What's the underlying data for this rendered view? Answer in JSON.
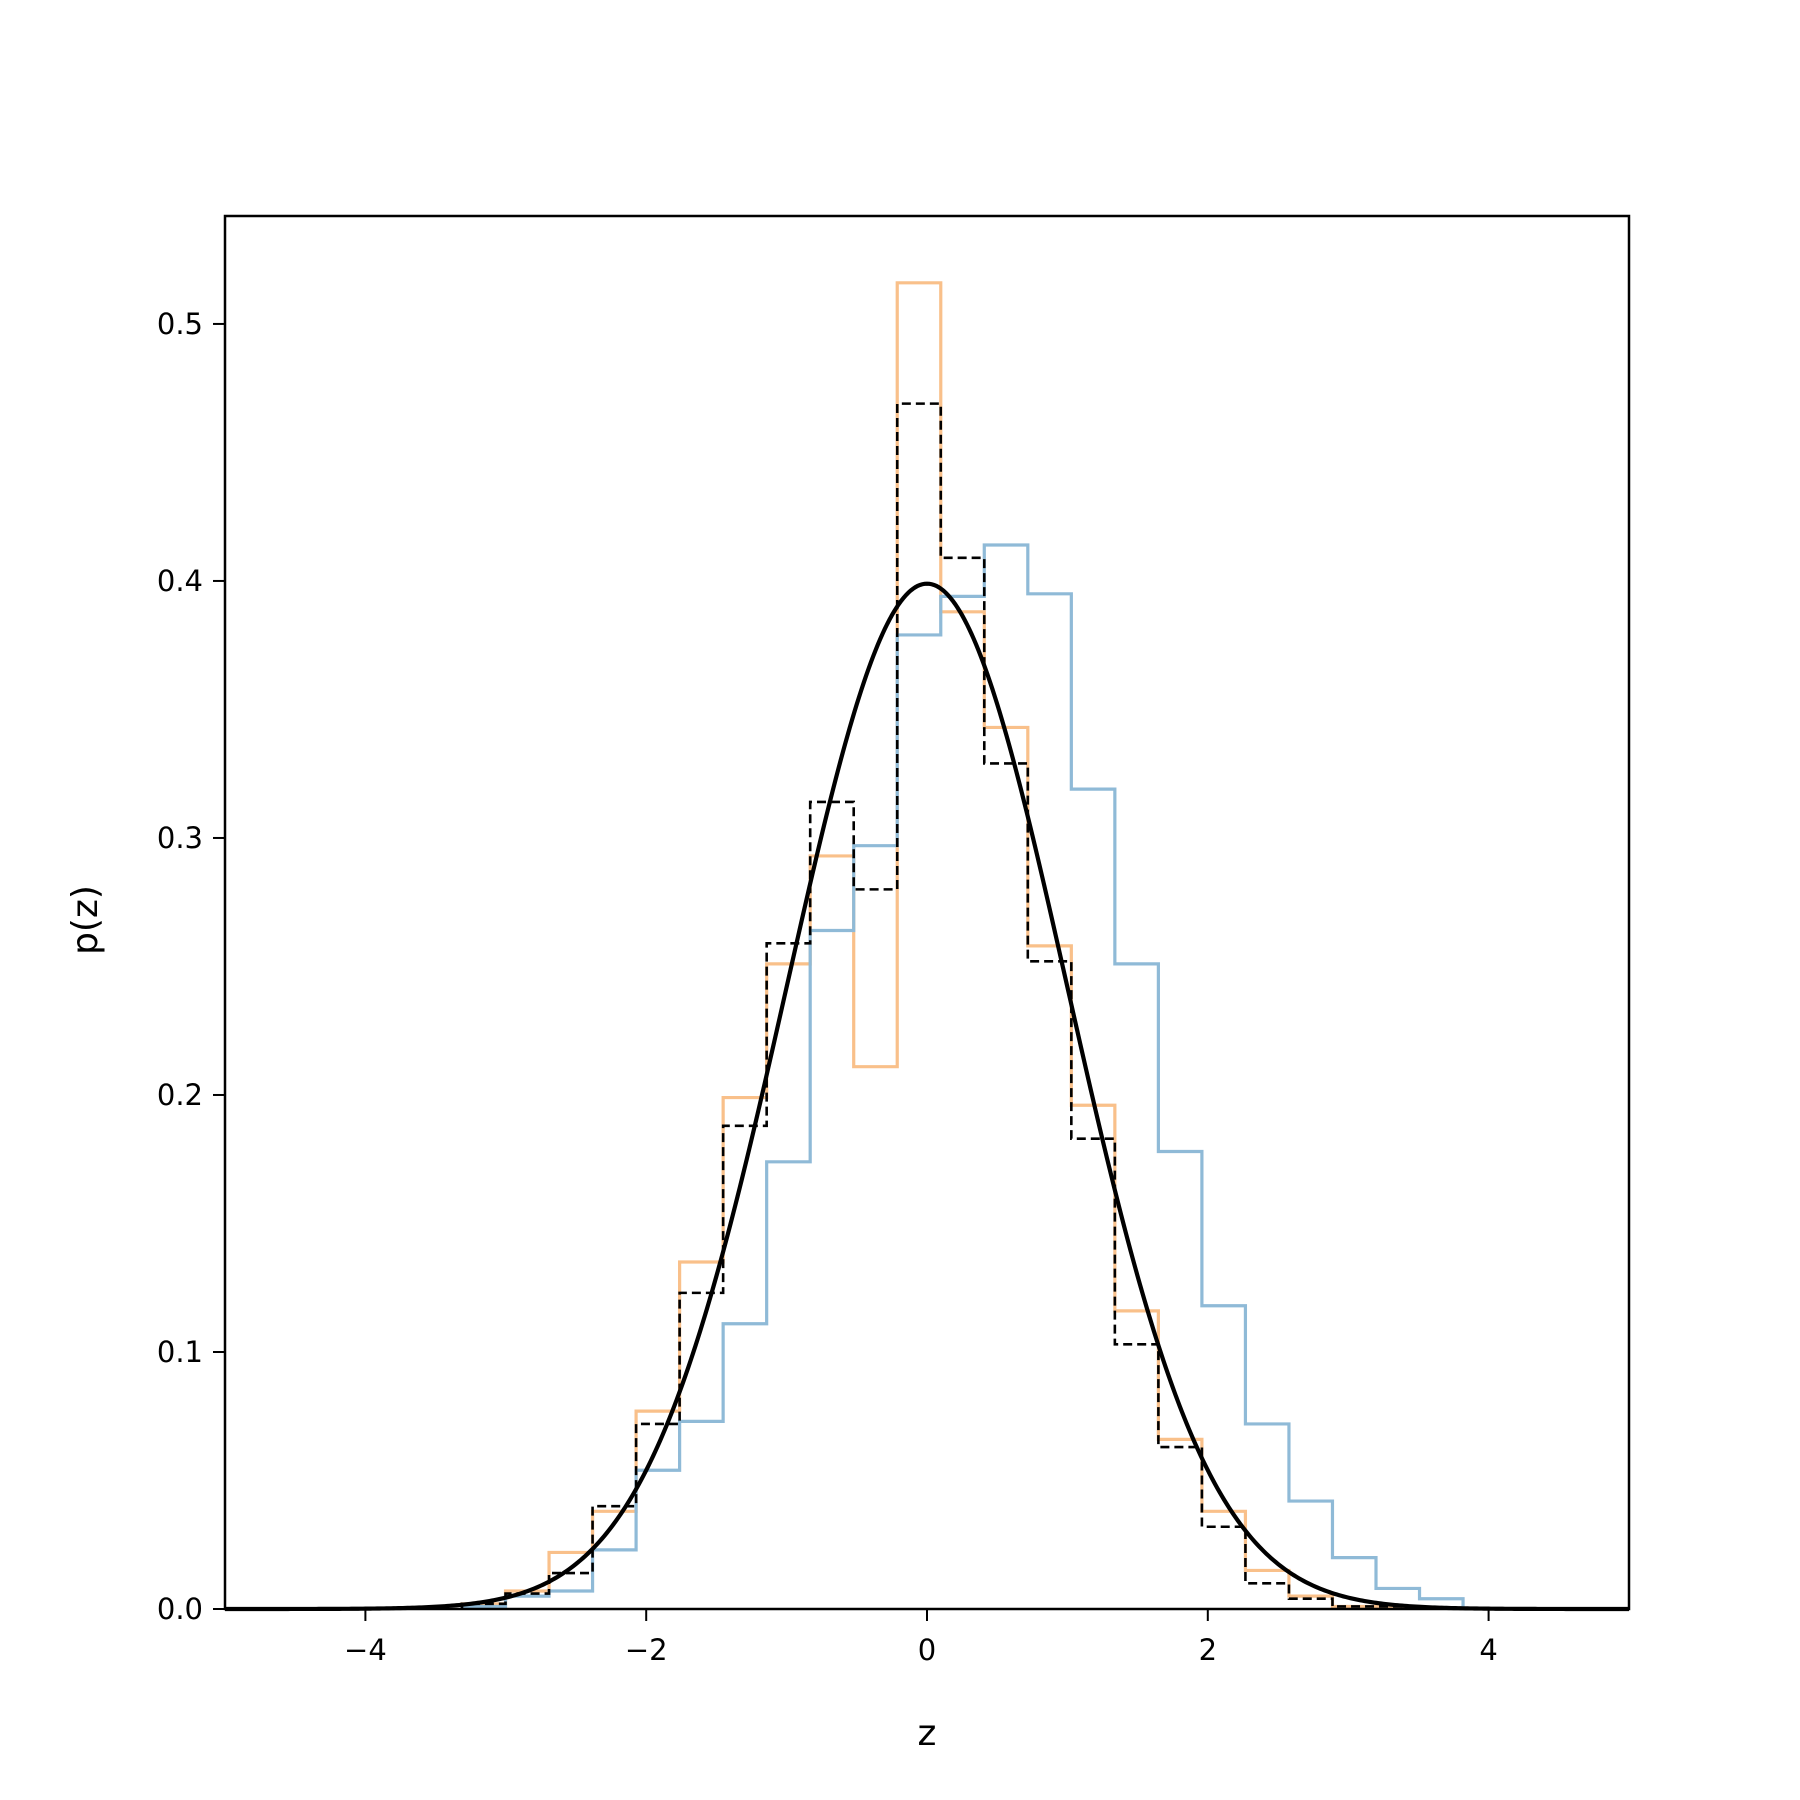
{
  "chart_data": {
    "type": "histogram",
    "xlabel": "z",
    "ylabel": "p(z)",
    "xlim": [
      -5,
      5
    ],
    "ylim": [
      0,
      0.542
    ],
    "grid": false,
    "legend": "none",
    "xticks": [
      -4,
      -2,
      0,
      2,
      4
    ],
    "xtick_labels": [
      "−4",
      "−2",
      "0",
      "2",
      "4"
    ],
    "yticks": [
      0.0,
      0.1,
      0.2,
      0.3,
      0.4,
      0.5
    ],
    "ytick_labels": [
      "0.0",
      "0.1",
      "0.2",
      "0.3",
      "0.4",
      "0.5"
    ],
    "series": [
      {
        "style": "step",
        "color": "#f9c08a",
        "bin_start": -3.312,
        "bin_width": 0.31,
        "values": [
          0.002,
          0.007,
          0.022,
          0.038,
          0.077,
          0.135,
          0.199,
          0.251,
          0.293,
          0.211,
          0.516,
          0.388,
          0.343,
          0.258,
          0.196,
          0.116,
          0.066,
          0.038,
          0.015,
          0.005,
          0.001,
          0.001
        ]
      },
      {
        "style": "step",
        "color": "#8fbad7",
        "bin_start": -3.312,
        "bin_width": 0.31,
        "values": [
          0.001,
          0.005,
          0.007,
          0.023,
          0.054,
          0.073,
          0.111,
          0.174,
          0.264,
          0.297,
          0.379,
          0.394,
          0.414,
          0.395,
          0.319,
          0.251,
          0.178,
          0.118,
          0.072,
          0.042,
          0.02,
          0.008,
          0.004
        ]
      },
      {
        "style": "step-dashed",
        "color": "#000000",
        "bin_start": -3.312,
        "bin_width": 0.31,
        "values": [
          0.002,
          0.006,
          0.014,
          0.04,
          0.072,
          0.123,
          0.188,
          0.259,
          0.314,
          0.28,
          0.469,
          0.409,
          0.329,
          0.252,
          0.183,
          0.103,
          0.063,
          0.032,
          0.01,
          0.004,
          0.001,
          0.001
        ]
      },
      {
        "style": "line",
        "color": "#000000",
        "function": "standard normal pdf",
        "x_range": [
          -5,
          5
        ]
      }
    ]
  }
}
